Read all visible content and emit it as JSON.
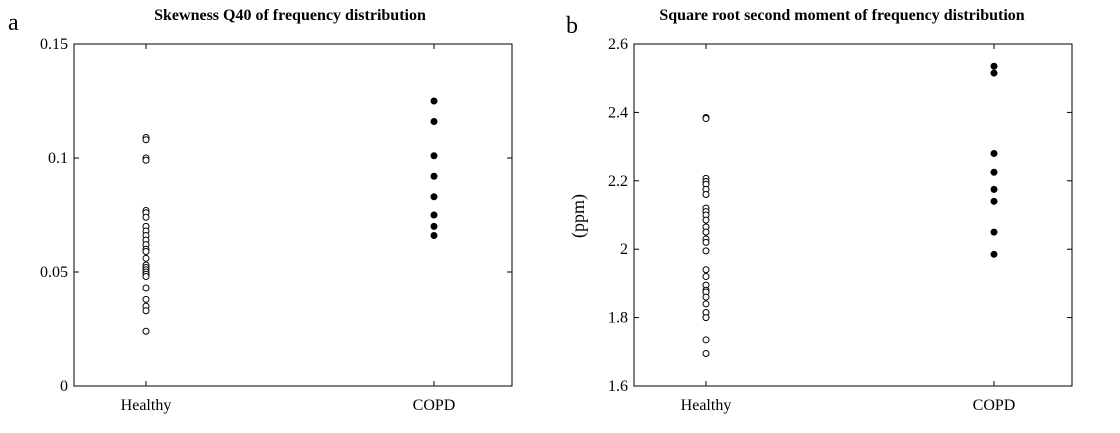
{
  "chart_data": [
    {
      "type": "scatter",
      "panel_letter": "a",
      "title": "Skewness Q40 of frequency distribution",
      "xlabel": "",
      "ylabel": "",
      "categories": [
        "Healthy",
        "COPD"
      ],
      "ylim": [
        0,
        0.15
      ],
      "yticks": [
        0,
        0.05,
        0.1,
        0.15
      ],
      "ytick_labels": [
        "0",
        "0.05",
        "0.1",
        "0.15"
      ],
      "grid": false,
      "series": [
        {
          "name": "Healthy",
          "marker": "open-circle",
          "values": [
            0.109,
            0.108,
            0.1,
            0.099,
            0.077,
            0.076,
            0.074,
            0.07,
            0.068,
            0.066,
            0.064,
            0.062,
            0.06,
            0.059,
            0.056,
            0.053,
            0.052,
            0.051,
            0.05,
            0.049,
            0.048,
            0.043,
            0.038,
            0.035,
            0.033,
            0.024
          ]
        },
        {
          "name": "COPD",
          "marker": "filled-circle",
          "values": [
            0.125,
            0.116,
            0.101,
            0.092,
            0.083,
            0.075,
            0.07,
            0.066
          ]
        }
      ]
    },
    {
      "type": "scatter",
      "panel_letter": "b",
      "title": "Square root second moment of frequency distribution",
      "xlabel": "",
      "ylabel": "(ppm)",
      "categories": [
        "Healthy",
        "COPD"
      ],
      "ylim": [
        1.6,
        2.6
      ],
      "yticks": [
        1.6,
        1.8,
        2.0,
        2.2,
        2.4,
        2.6
      ],
      "ytick_labels": [
        "1.6",
        "1.8",
        "2",
        "2.2",
        "2.4",
        "2.6"
      ],
      "grid": false,
      "series": [
        {
          "name": "Healthy",
          "marker": "open-circle",
          "values": [
            2.385,
            2.382,
            2.207,
            2.198,
            2.19,
            2.175,
            2.16,
            2.12,
            2.11,
            2.1,
            2.085,
            2.065,
            2.05,
            2.03,
            2.02,
            1.995,
            1.94,
            1.92,
            1.895,
            1.88,
            1.875,
            1.86,
            1.84,
            1.815,
            1.8,
            1.735,
            1.695
          ]
        },
        {
          "name": "COPD",
          "marker": "filled-circle",
          "values": [
            2.535,
            2.515,
            2.28,
            2.225,
            2.175,
            2.14,
            2.05,
            1.985
          ]
        }
      ]
    }
  ]
}
